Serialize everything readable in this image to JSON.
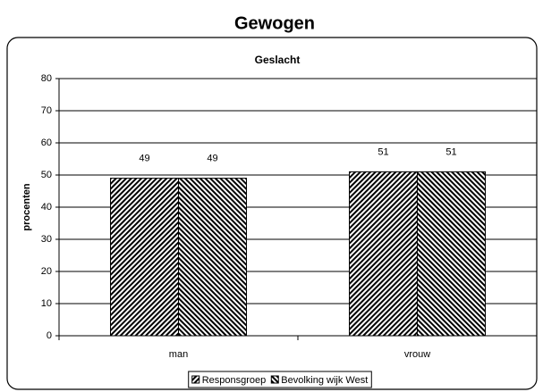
{
  "chart_data": {
    "type": "bar",
    "title": "Gewogen",
    "subtitle": "Geslacht",
    "y_label": "procenten",
    "categories": [
      "man",
      "vrouw"
    ],
    "series": [
      {
        "name": "Responsgroep",
        "color": "#000000",
        "values": [
          49,
          51
        ]
      },
      {
        "name": "Bevolking wijk West",
        "color": "#000000",
        "values": [
          49,
          51
        ]
      }
    ],
    "ylim": [
      0,
      80
    ],
    "yticks": [
      0,
      10,
      20,
      30,
      40,
      50,
      60,
      70,
      80
    ],
    "grid": true,
    "legend": "bottom"
  }
}
